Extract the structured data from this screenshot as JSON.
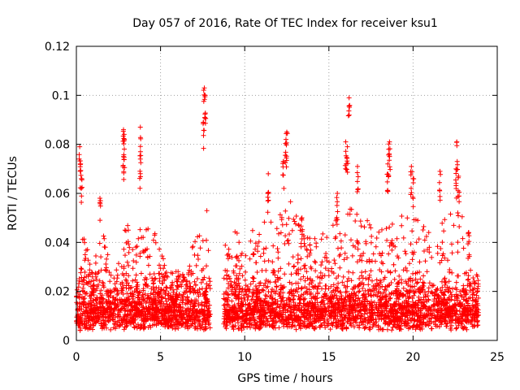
{
  "chart_data": {
    "type": "scatter",
    "title": "Day 057 of 2016, Rate Of TEC Index for receiver ksu1",
    "xlabel": "GPS time / hours",
    "ylabel": "ROTI / TECUs",
    "xlim": [
      0,
      25
    ],
    "ylim": [
      0,
      0.12
    ],
    "x_ticks": [
      0,
      5,
      10,
      15,
      20,
      25
    ],
    "x_tick_labels": [
      "0",
      "5",
      "10",
      "15",
      "20",
      "25"
    ],
    "y_ticks": [
      0,
      0.02,
      0.04,
      0.06,
      0.08,
      0.1,
      0.12
    ],
    "y_tick_labels": [
      "0",
      "0.02",
      "0.04",
      "0.06",
      "0.08",
      "0.1",
      "0.12"
    ],
    "grid": true,
    "marker": "+",
    "color": "#ff0000",
    "series": [
      {
        "name": "ROTI",
        "note": "dense cloud of points, mostly 0.003-0.03 TECU, data gap ~7.95-8.75 h",
        "peaks": [
          {
            "x": 0.2,
            "y": 0.079
          },
          {
            "x": 0.25,
            "y": 0.072
          },
          {
            "x": 0.3,
            "y": 0.066
          },
          {
            "x": 1.4,
            "y": 0.058
          },
          {
            "x": 2.8,
            "y": 0.086
          },
          {
            "x": 2.85,
            "y": 0.082
          },
          {
            "x": 2.8,
            "y": 0.075
          },
          {
            "x": 3.8,
            "y": 0.087
          },
          {
            "x": 3.8,
            "y": 0.074
          },
          {
            "x": 7.6,
            "y": 0.103
          },
          {
            "x": 7.65,
            "y": 0.1
          },
          {
            "x": 7.55,
            "y": 0.089
          },
          {
            "x": 12.5,
            "y": 0.085
          },
          {
            "x": 12.45,
            "y": 0.082
          },
          {
            "x": 12.3,
            "y": 0.073
          },
          {
            "x": 11.4,
            "y": 0.068
          },
          {
            "x": 13.4,
            "y": 0.05
          },
          {
            "x": 15.5,
            "y": 0.06
          },
          {
            "x": 16.0,
            "y": 0.081
          },
          {
            "x": 16.1,
            "y": 0.079
          },
          {
            "x": 16.2,
            "y": 0.099
          },
          {
            "x": 16.7,
            "y": 0.071
          },
          {
            "x": 18.6,
            "y": 0.081
          },
          {
            "x": 18.55,
            "y": 0.078
          },
          {
            "x": 18.5,
            "y": 0.072
          },
          {
            "x": 19.9,
            "y": 0.071
          },
          {
            "x": 20.0,
            "y": 0.066
          },
          {
            "x": 21.6,
            "y": 0.069
          },
          {
            "x": 22.6,
            "y": 0.081
          },
          {
            "x": 22.55,
            "y": 0.07
          },
          {
            "x": 22.7,
            "y": 0.067
          },
          {
            "x": 23.3,
            "y": 0.044
          }
        ],
        "activity_envelope": [
          {
            "x": 0.0,
            "y": 0.025
          },
          {
            "x": 0.3,
            "y": 0.045
          },
          {
            "x": 1.0,
            "y": 0.03
          },
          {
            "x": 1.5,
            "y": 0.045
          },
          {
            "x": 2.3,
            "y": 0.03
          },
          {
            "x": 3.0,
            "y": 0.048
          },
          {
            "x": 3.8,
            "y": 0.055
          },
          {
            "x": 4.6,
            "y": 0.05
          },
          {
            "x": 5.3,
            "y": 0.03
          },
          {
            "x": 6.2,
            "y": 0.028
          },
          {
            "x": 7.0,
            "y": 0.04
          },
          {
            "x": 7.7,
            "y": 0.055
          },
          {
            "x": 8.9,
            "y": 0.04
          },
          {
            "x": 9.5,
            "y": 0.045
          },
          {
            "x": 10.5,
            "y": 0.045
          },
          {
            "x": 11.5,
            "y": 0.055
          },
          {
            "x": 12.5,
            "y": 0.06
          },
          {
            "x": 13.5,
            "y": 0.045
          },
          {
            "x": 14.5,
            "y": 0.045
          },
          {
            "x": 15.5,
            "y": 0.05
          },
          {
            "x": 16.2,
            "y": 0.055
          },
          {
            "x": 17.0,
            "y": 0.05
          },
          {
            "x": 18.0,
            "y": 0.05
          },
          {
            "x": 19.0,
            "y": 0.05
          },
          {
            "x": 20.0,
            "y": 0.055
          },
          {
            "x": 21.0,
            "y": 0.045
          },
          {
            "x": 22.0,
            "y": 0.05
          },
          {
            "x": 22.7,
            "y": 0.06
          },
          {
            "x": 23.5,
            "y": 0.035
          },
          {
            "x": 23.9,
            "y": 0.025
          }
        ],
        "gap": [
          7.95,
          8.75
        ],
        "x_range": [
          0.0,
          23.9
        ]
      }
    ]
  }
}
